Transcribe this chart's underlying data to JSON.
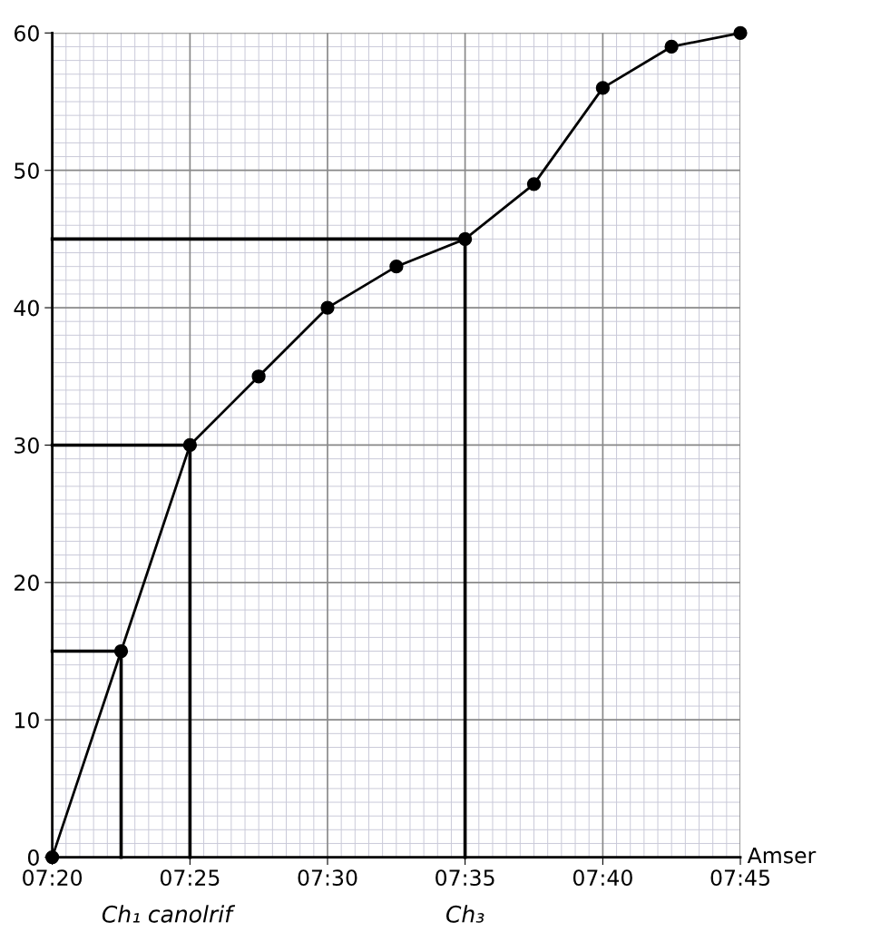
{
  "chart_data": {
    "type": "line",
    "xlabel": "Amser",
    "xlim": [
      7.3333,
      7.75
    ],
    "ylim": [
      0,
      60
    ],
    "xticks": [
      {
        "value": 7.3333,
        "label": "07:20"
      },
      {
        "value": 7.4167,
        "label": "07:25"
      },
      {
        "value": 7.5,
        "label": "07:30"
      },
      {
        "value": 7.5833,
        "label": "07:35"
      },
      {
        "value": 7.6667,
        "label": "07:40"
      },
      {
        "value": 7.75,
        "label": "07:45"
      }
    ],
    "yticks": [
      0,
      10,
      20,
      30,
      40,
      50,
      60
    ],
    "grid": true,
    "series": [
      {
        "color": "#000000",
        "marker": "circle",
        "x": [
          7.3333,
          7.375,
          7.4167,
          7.4583,
          7.5,
          7.5417,
          7.5833,
          7.625,
          7.6667,
          7.7083,
          7.75
        ],
        "values": [
          0,
          15,
          30,
          35,
          40,
          43,
          45,
          49,
          56,
          59,
          60
        ]
      },
      {
        "color": "#000000",
        "marker": "none",
        "x": [
          7.3333,
          7.375,
          7.375
        ],
        "values": [
          15,
          15,
          0
        ]
      },
      {
        "color": "#000000",
        "marker": "none",
        "x": [
          7.3333,
          7.4167,
          7.4167
        ],
        "values": [
          30,
          30,
          0
        ]
      },
      {
        "color": "#000000",
        "marker": "none",
        "x": [
          7.3333,
          7.5833,
          7.5833
        ],
        "values": [
          45,
          45,
          0
        ]
      }
    ],
    "annotations": [
      {
        "text": "Ch₁",
        "x": 7.375,
        "y": 0
      },
      {
        "text": "canolrif",
        "x": 7.4167,
        "y": 0
      },
      {
        "text": "Ch₃",
        "x": 7.5833,
        "y": 0
      }
    ]
  }
}
